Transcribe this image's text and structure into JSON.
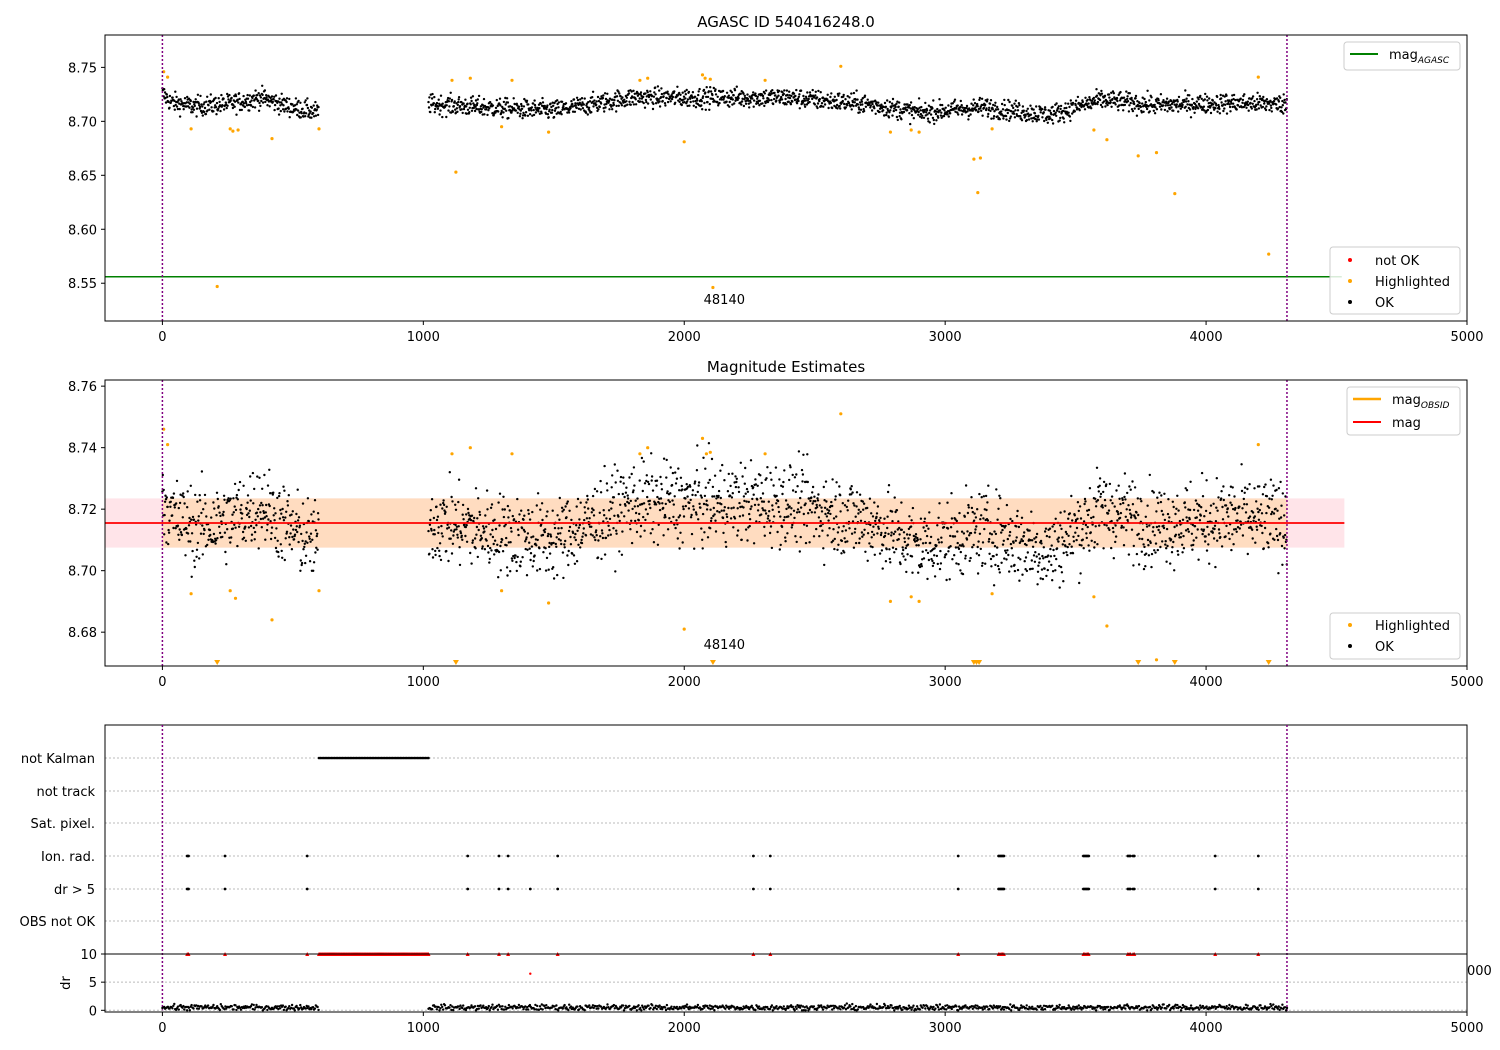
{
  "figure": {
    "title": "AGASC ID 540416248.0",
    "colors": {
      "ok": "#000000",
      "highlighted": "#FFA500",
      "not_ok": "#FF0000",
      "mag_agasc_line": "#008000",
      "mag_line": "#FF0000",
      "mag_obsid_line": "#FFA500",
      "obs_boundary": "#800080",
      "band_orange": "#FFDAB9",
      "band_pink": "#FFE4E9"
    }
  },
  "chart_data": [
    {
      "id": "agasc",
      "type": "scatter",
      "title": "AGASC ID 540416248.0",
      "xlim": [
        -220,
        5000
      ],
      "ylim": [
        8.515,
        8.78
      ],
      "xticks": [
        0,
        1000,
        2000,
        3000,
        4000,
        5000
      ],
      "yticks": [
        8.55,
        8.6,
        8.65,
        8.7,
        8.75
      ],
      "ytick_labels": [
        "8.55",
        "8.60",
        "8.65",
        "8.70",
        "8.75"
      ],
      "obs_boundaries": [
        0,
        4310
      ],
      "annotations": [
        {
          "text": "48140",
          "x": 2100,
          "y": 8.525
        }
      ],
      "legend_upper": {
        "position": "top-right",
        "entries": [
          {
            "label": "mag",
            "subscript": "AGASC",
            "color": "#008000"
          }
        ]
      },
      "legend_lower": {
        "position": "bottom-right",
        "entries": [
          {
            "label": "not OK",
            "color": "#FF0000"
          },
          {
            "label": "Highlighted",
            "color": "#FFA500"
          },
          {
            "label": "OK",
            "color": "#000000"
          }
        ]
      },
      "mag_agasc": 8.556,
      "mag_agasc_xrange": [
        -220,
        4520
      ],
      "ok_segments": [
        {
          "x": [
            0,
            600
          ],
          "anchors": [
            [
              0,
              8.726
            ],
            [
              30,
              8.718
            ],
            [
              120,
              8.714
            ],
            [
              250,
              8.716
            ],
            [
              380,
              8.722
            ],
            [
              480,
              8.714
            ],
            [
              600,
              8.708
            ]
          ],
          "step": 1.7
        },
        {
          "x": [
            1020,
            4310
          ],
          "anchors": [
            [
              1020,
              8.716
            ],
            [
              1300,
              8.712
            ],
            [
              1500,
              8.71
            ],
            [
              1800,
              8.722
            ],
            [
              2100,
              8.722
            ],
            [
              2400,
              8.722
            ],
            [
              2700,
              8.716
            ],
            [
              2900,
              8.708
            ],
            [
              3150,
              8.713
            ],
            [
              3400,
              8.706
            ],
            [
              3600,
              8.72
            ],
            [
              3800,
              8.715
            ],
            [
              4100,
              8.717
            ],
            [
              4310,
              8.716
            ]
          ],
          "step": 1.7
        }
      ],
      "ok_noise": 0.0045,
      "highlighted": [
        {
          "x": 5,
          "y": 8.746
        },
        {
          "x": 20,
          "y": 8.741
        },
        {
          "x": 110,
          "y": 8.693
        },
        {
          "x": 210,
          "y": 8.547
        },
        {
          "x": 260,
          "y": 8.693
        },
        {
          "x": 270,
          "y": 8.691
        },
        {
          "x": 290,
          "y": 8.692
        },
        {
          "x": 420,
          "y": 8.684
        },
        {
          "x": 600,
          "y": 8.693
        },
        {
          "x": 1110,
          "y": 8.738
        },
        {
          "x": 1125,
          "y": 8.653
        },
        {
          "x": 1180,
          "y": 8.74
        },
        {
          "x": 1300,
          "y": 8.695
        },
        {
          "x": 1340,
          "y": 8.738
        },
        {
          "x": 1480,
          "y": 8.69
        },
        {
          "x": 1830,
          "y": 8.738
        },
        {
          "x": 1860,
          "y": 8.74
        },
        {
          "x": 2000,
          "y": 8.681
        },
        {
          "x": 2070,
          "y": 8.743
        },
        {
          "x": 2080,
          "y": 8.74
        },
        {
          "x": 2100,
          "y": 8.739
        },
        {
          "x": 2110,
          "y": 8.546
        },
        {
          "x": 2310,
          "y": 8.738
        },
        {
          "x": 2600,
          "y": 8.751
        },
        {
          "x": 2790,
          "y": 8.69
        },
        {
          "x": 2870,
          "y": 8.692
        },
        {
          "x": 2900,
          "y": 8.69
        },
        {
          "x": 3110,
          "y": 8.665
        },
        {
          "x": 3125,
          "y": 8.634
        },
        {
          "x": 3135,
          "y": 8.666
        },
        {
          "x": 3180,
          "y": 8.693
        },
        {
          "x": 3570,
          "y": 8.692
        },
        {
          "x": 3620,
          "y": 8.683
        },
        {
          "x": 3740,
          "y": 8.668
        },
        {
          "x": 3810,
          "y": 8.671
        },
        {
          "x": 3880,
          "y": 8.633
        },
        {
          "x": 4200,
          "y": 8.741
        },
        {
          "x": 4240,
          "y": 8.577
        }
      ]
    },
    {
      "id": "estimates",
      "type": "scatter",
      "title": "Magnitude Estimates",
      "xlim": [
        -220,
        5000
      ],
      "ylim": [
        8.669,
        8.762
      ],
      "xticks": [
        0,
        1000,
        2000,
        3000,
        4000,
        5000
      ],
      "yticks": [
        8.68,
        8.7,
        8.72,
        8.74,
        8.76
      ],
      "ytick_labels": [
        "8.68",
        "8.70",
        "8.72",
        "8.74",
        "8.76"
      ],
      "obs_boundaries": [
        0,
        4310
      ],
      "annotations": [
        {
          "text": "48140",
          "x": 2100,
          "y": 8.6725
        }
      ],
      "legend_upper": {
        "position": "top-right",
        "entries": [
          {
            "label": "mag",
            "subscript": "OBSID",
            "color": "#FFA500"
          },
          {
            "label": "mag",
            "color": "#FF0000"
          }
        ]
      },
      "legend_lower": {
        "position": "bottom-right",
        "entries": [
          {
            "label": "Highlighted",
            "color": "#FFA500"
          },
          {
            "label": "OK",
            "color": "#000000"
          }
        ]
      },
      "mag": 8.7155,
      "mag_band": [
        8.7075,
        8.7235
      ],
      "mag_xrange": [
        -220,
        4530
      ],
      "obsid_band_xrange": [
        0,
        4310
      ],
      "ok_noise": 0.0065,
      "highlighted": [
        {
          "x": 5,
          "y": 8.746
        },
        {
          "x": 20,
          "y": 8.741
        },
        {
          "x": 110,
          "y": 8.6925
        },
        {
          "x": 260,
          "y": 8.6935
        },
        {
          "x": 280,
          "y": 8.691
        },
        {
          "x": 420,
          "y": 8.684
        },
        {
          "x": 600,
          "y": 8.6935
        },
        {
          "x": 1110,
          "y": 8.738
        },
        {
          "x": 1180,
          "y": 8.74
        },
        {
          "x": 1300,
          "y": 8.6935
        },
        {
          "x": 1340,
          "y": 8.738
        },
        {
          "x": 1480,
          "y": 8.6895
        },
        {
          "x": 1830,
          "y": 8.738
        },
        {
          "x": 1860,
          "y": 8.74
        },
        {
          "x": 2000,
          "y": 8.681
        },
        {
          "x": 2070,
          "y": 8.743
        },
        {
          "x": 2085,
          "y": 8.738
        },
        {
          "x": 2100,
          "y": 8.7385
        },
        {
          "x": 2310,
          "y": 8.738
        },
        {
          "x": 2600,
          "y": 8.751
        },
        {
          "x": 2790,
          "y": 8.69
        },
        {
          "x": 2870,
          "y": 8.6915
        },
        {
          "x": 2900,
          "y": 8.69
        },
        {
          "x": 3180,
          "y": 8.6925
        },
        {
          "x": 3570,
          "y": 8.6915
        },
        {
          "x": 3620,
          "y": 8.682
        },
        {
          "x": 3810,
          "y": 8.671
        },
        {
          "x": 4200,
          "y": 8.741
        }
      ],
      "below_range_markers": [
        210,
        1125,
        2110,
        3110,
        3120,
        3130,
        3740,
        3880,
        4240
      ]
    },
    {
      "id": "flags",
      "type": "scatter",
      "xlim": [
        -220,
        5000
      ],
      "xticks": [
        0,
        1000,
        2000,
        3000,
        4000,
        5000
      ],
      "obs_boundaries": [
        0,
        4310
      ],
      "categories": [
        "not Kalman",
        "not track",
        "Sat. pixel.",
        "Ion. rad.",
        "dr > 5",
        "OBS not OK"
      ],
      "flags": {
        "not Kalman": {
          "ranges": [
            [
              600,
              1020
            ]
          ]
        },
        "Ion. rad.": {
          "points": [
            95,
            100,
            240,
            555,
            1170,
            1290,
            1325,
            1515,
            2265,
            2330,
            3050,
            3205,
            3210,
            3215,
            3220,
            3225,
            3530,
            3535,
            3540,
            3545,
            3550,
            3700,
            3705,
            3710,
            3720,
            3725,
            4035,
            4200
          ]
        },
        "dr > 5": {
          "points": [
            95,
            100,
            240,
            555,
            1170,
            1290,
            1325,
            1410,
            1515,
            2265,
            2330,
            3050,
            3205,
            3210,
            3215,
            3220,
            3225,
            3530,
            3535,
            3540,
            3545,
            3550,
            3700,
            3705,
            3710,
            3720,
            3725,
            4035,
            4200
          ]
        }
      },
      "dr_panel": {
        "ylabel": "dr",
        "ylim": [
          -0.3,
          10
        ],
        "yticks": [
          0,
          5,
          10
        ],
        "ytick_labels": [
          "0",
          "5",
          "10"
        ],
        "clipped_label": "000",
        "dr_high": 10,
        "high_points": [
          95,
          100,
          240,
          555,
          1170,
          1290,
          1325,
          1515,
          2265,
          2330,
          3050,
          3205,
          3210,
          3215,
          3220,
          3225,
          3530,
          3535,
          3540,
          3545,
          3550,
          3700,
          3705,
          3710,
          3720,
          3725,
          4035,
          4200
        ],
        "high_ranges": [
          [
            600,
            1020
          ]
        ],
        "isolated": [
          {
            "x": 1410,
            "y": 6.5
          }
        ],
        "normal_segments": [
          [
            0,
            600
          ],
          [
            1020,
            4310
          ]
        ],
        "normal_level": 0.5
      }
    }
  ]
}
